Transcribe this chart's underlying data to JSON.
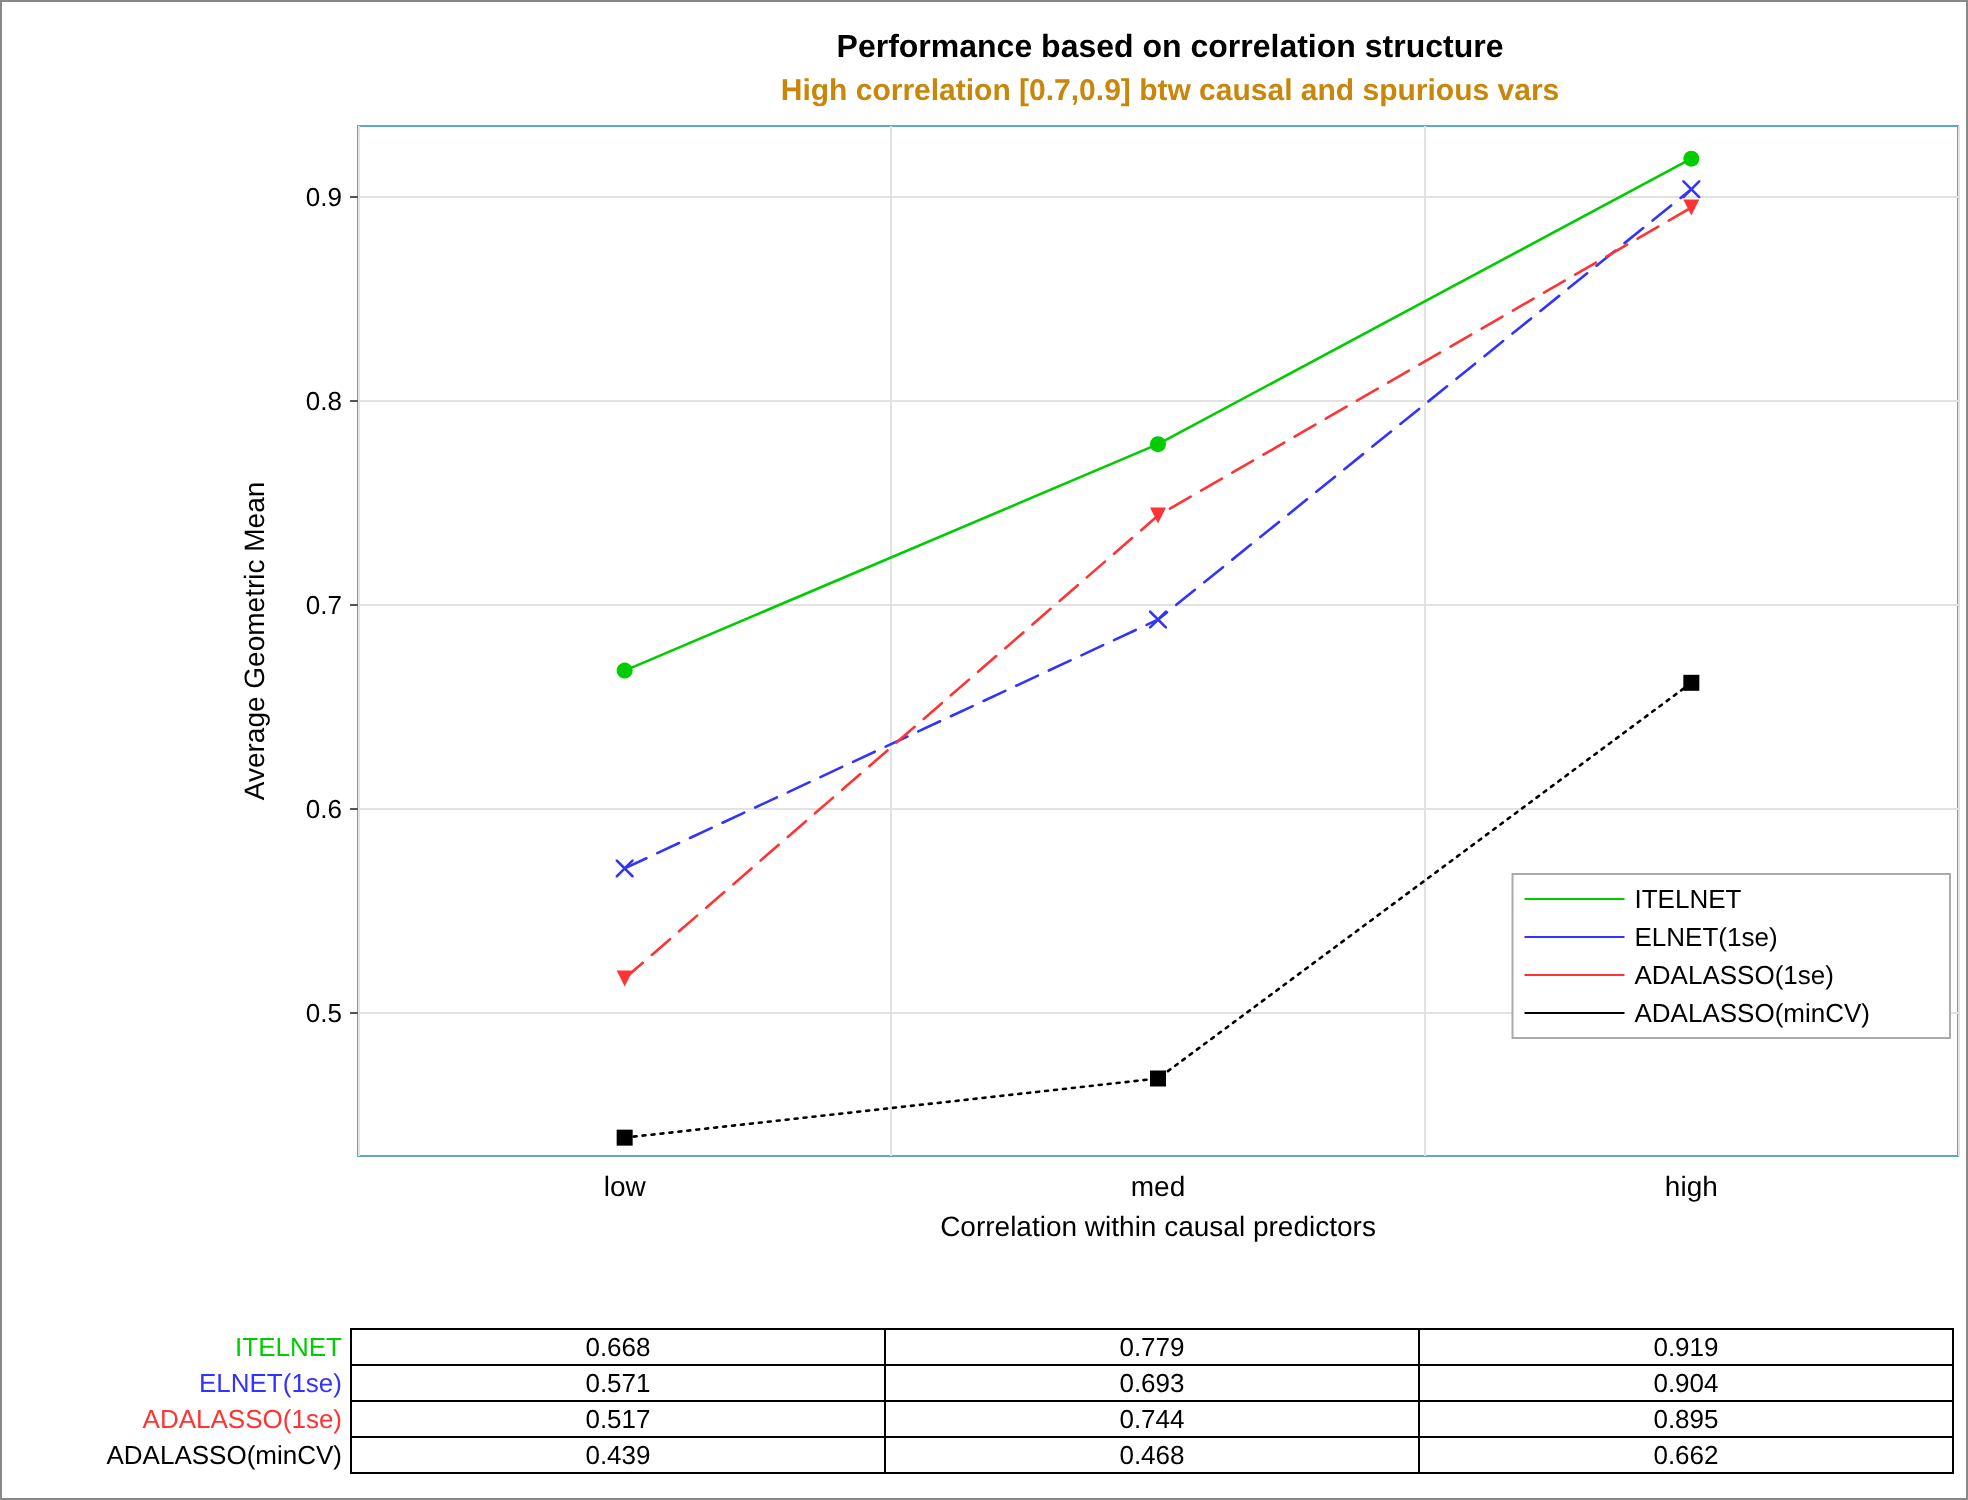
{
  "chart_data": {
    "type": "line",
    "title": "Performance based on correlation structure",
    "subtitle": "High correlation [0.7,0.9] btw causal and spurious vars",
    "xlabel": "Correlation within causal predictors",
    "ylabel": "Average Geometric Mean",
    "categories": [
      "low",
      "med",
      "high"
    ],
    "series": [
      {
        "name": "ITELNET",
        "color": "#00cc00",
        "marker": "circle",
        "line_style": "solid",
        "values": [
          0.668,
          0.779,
          0.919
        ]
      },
      {
        "name": "ELNET(1se)",
        "color": "#3333ff",
        "marker": "cross",
        "line_style": "dashed",
        "values": [
          0.571,
          0.693,
          0.904
        ]
      },
      {
        "name": "ADALASSO(1se)",
        "color": "#ff3333",
        "marker": "triangle",
        "line_style": "dashed",
        "values": [
          0.517,
          0.744,
          0.895
        ]
      },
      {
        "name": "ADALASSO(minCV)",
        "color": "#000000",
        "marker": "square",
        "line_style": "dotted",
        "values": [
          0.439,
          0.468,
          0.662
        ]
      }
    ],
    "ylim": [
      0.43,
      0.935
    ],
    "yticks": [
      0.5,
      0.6,
      0.7,
      0.8,
      0.9
    ],
    "grid": true,
    "legend": "bottom right",
    "data_labels": true
  }
}
